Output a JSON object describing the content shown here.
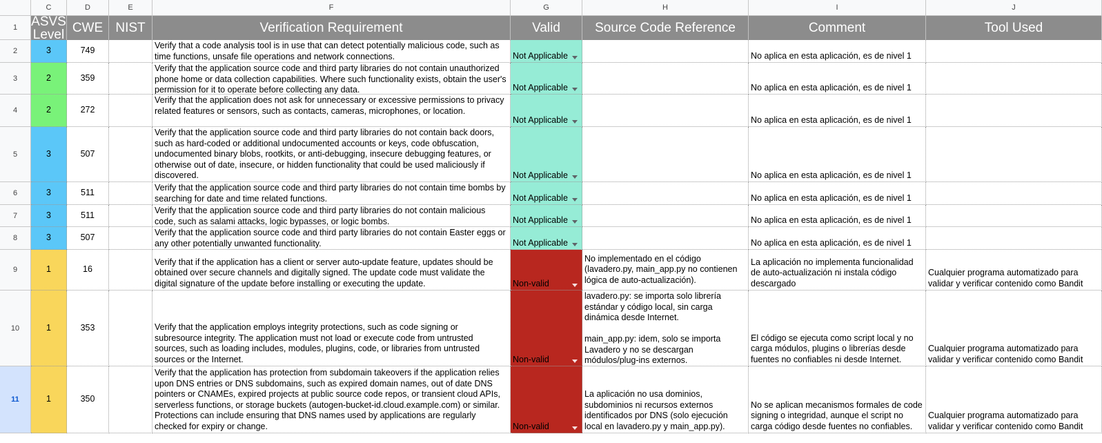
{
  "columns": [
    {
      "key": "C",
      "label": "C"
    },
    {
      "key": "D",
      "label": "D"
    },
    {
      "key": "E",
      "label": "E"
    },
    {
      "key": "F",
      "label": "F"
    },
    {
      "key": "G",
      "label": "G"
    },
    {
      "key": "H",
      "label": "H"
    },
    {
      "key": "I",
      "label": "I"
    },
    {
      "key": "J",
      "label": "J"
    }
  ],
  "header": {
    "row_label": "1",
    "cells": [
      "ASVS Level",
      "CWE",
      "NIST",
      "Verification Requirement",
      "Valid",
      "Source Code Reference",
      "Comment",
      "Tool Used"
    ]
  },
  "colors": {
    "level_1": "#f9d65b",
    "level_2": "#79f279",
    "level_3": "#5bc7f8",
    "not_applicable": "#96ecd6",
    "non_valid": "#b8271f",
    "header_bg": "#8c8c8c"
  },
  "rows": [
    {
      "row": "2",
      "level": "3",
      "cwe": "749",
      "nist": "",
      "requirement": "Verify that a code analysis tool is in use that can detect potentially malicious code, such as time functions, unsafe file operations and network connections.",
      "valid": "Not Applicable",
      "source": "",
      "comment": "No aplica en esta aplicación, es de nivel 1",
      "tool": ""
    },
    {
      "row": "3",
      "level": "2",
      "cwe": "359",
      "nist": "",
      "requirement": "Verify that the application source code and third party libraries do not contain unauthorized phone home or data collection capabilities. Where such functionality exists, obtain the user's permission for it to operate  before collecting any data.",
      "valid": "Not Applicable",
      "source": "",
      "comment": "No aplica en esta aplicación, es de nivel 1",
      "tool": ""
    },
    {
      "row": "4",
      "level": "2",
      "cwe": "272",
      "nist": "",
      "requirement": "Verify that the application does not ask for unnecessary or excessive permissions to privacy related features or sensors, such as contacts, cameras, microphones, or location.",
      "valid": "Not Applicable",
      "source": "",
      "comment": "No aplica en esta aplicación, es de nivel 1",
      "tool": ""
    },
    {
      "row": "5",
      "level": "3",
      "cwe": "507",
      "nist": "",
      "requirement": "Verify that the application source code and third party libraries do not contain back doors, such as hard-coded or additional undocumented accounts or keys, code obfuscation, undocumented binary blobs, rootkits, or anti-debugging, insecure debugging features, or otherwise out of date, insecure, or hidden functionality that could be used maliciously if discovered.",
      "valid": "Not Applicable",
      "source": "",
      "comment": "No aplica en esta aplicación, es de nivel 1",
      "tool": ""
    },
    {
      "row": "6",
      "level": "3",
      "cwe": "511",
      "nist": "",
      "requirement": "Verify that the application source code and third party libraries do not contain time bombs by searching for date and time related functions.",
      "valid": "Not Applicable",
      "source": "",
      "comment": "No aplica en esta aplicación, es de nivel 1",
      "tool": ""
    },
    {
      "row": "7",
      "level": "3",
      "cwe": "511",
      "nist": "",
      "requirement": "Verify that the application source code and third party libraries do not contain malicious code, such as salami attacks, logic bypasses, or logic bombs.",
      "valid": "Not Applicable",
      "source": "",
      "comment": "No aplica en esta aplicación, es de nivel 1",
      "tool": ""
    },
    {
      "row": "8",
      "level": "3",
      "cwe": "507",
      "nist": "",
      "requirement": "Verify that the application source code and third party libraries do not contain Easter eggs or any other potentially unwanted functionality.",
      "valid": "Not Applicable",
      "source": "",
      "comment": "No aplica en esta aplicación, es de nivel 1",
      "tool": ""
    },
    {
      "row": "9",
      "level": "1",
      "cwe": "16",
      "nist": "",
      "requirement": "Verify that if the application has a client or server auto-update feature, updates should be obtained over secure channels and digitally signed. The update code must validate the digital signature of the update before installing or executing the update.",
      "valid": "Non-valid",
      "source": "No implementado en el código (lavadero.py, main_app.py no contienen lógica de auto-actualización).",
      "comment": "La aplicación no implementa funcionalidad de auto-actualización ni instala código descargado",
      "tool": "Cualquier programa automatizado para validar y verificar contenido como Bandit"
    },
    {
      "row": "10",
      "level": "1",
      "cwe": "353",
      "nist": "",
      "requirement": "Verify that the application employs integrity protections, such as code signing or subresource integrity. The application must not load or execute code from untrusted sources, such as loading includes, modules, plugins, code, or libraries from untrusted sources or the Internet.",
      "valid": "Non-valid",
      "source": "lavadero.py: se importa solo librería estándar y código local, sin carga dinámica desde Internet.\n\nmain_app.py: idem, solo se importa Lavadero y no se descargan módulos/plug-ins externos.",
      "comment": "El código se ejecuta como script local y no carga módulos, plugins o librerías desde fuentes no confiables ni desde Internet.",
      "tool": "Cualquier programa automatizado para validar y verificar contenido como Bandit"
    },
    {
      "row": "11",
      "level": "1",
      "cwe": "350",
      "nist": "",
      "requirement": "Verify that the application has protection from subdomain takeovers if the application relies upon DNS entries or DNS subdomains, such as expired domain names, out of date DNS pointers or CNAMEs, expired projects at public source code repos, or transient cloud APIs, serverless functions, or storage buckets (autogen-bucket-id.cloud.example.com) or similar. Protections can include ensuring that DNS names used by applications are regularly checked for expiry or change.",
      "valid": "Non-valid",
      "source": "La aplicación no usa dominios, subdominios ni recursos externos identificados por DNS (solo ejecución local en lavadero.py y main_app.py).",
      "comment": "No se aplican mecanismos formales de code signing o integridad, aunque el script no carga código desde fuentes no confiables.",
      "tool": "Cualquier programa automatizado para validar y verificar contenido como Bandit"
    }
  ]
}
